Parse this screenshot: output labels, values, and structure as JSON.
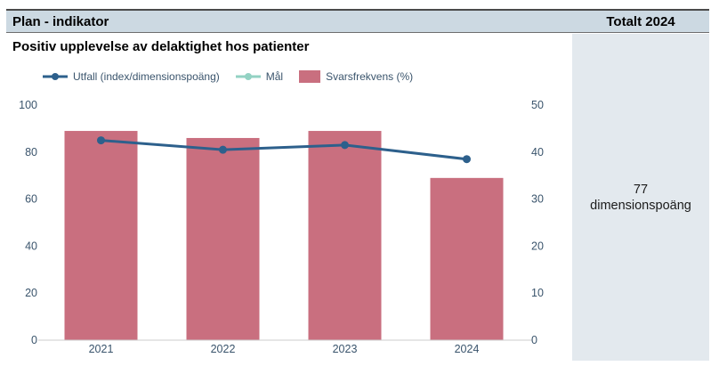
{
  "header": {
    "left_title": "Plan - indikator",
    "right_title": "Totalt 2024"
  },
  "page": {
    "title": "Positiv upplevelse av delaktighet hos patienter"
  },
  "summary_panel": {
    "value": "77",
    "unit": "dimensionspoäng"
  },
  "legend": {
    "items": [
      {
        "label": "Utfall (index/dimensionspoäng)",
        "marker": "line-dot",
        "color": "#2d608c"
      },
      {
        "label": "Mål",
        "marker": "line-dot",
        "color": "#93d2c3"
      },
      {
        "label": "Svarsfrekvens (%)",
        "marker": "box",
        "color": "#c96f7f"
      }
    ]
  },
  "chart_data": {
    "type": "bar",
    "subtype": "bar+line combo",
    "title": "Positiv upplevelse av delaktighet hos patienter",
    "categories": [
      "2021",
      "2022",
      "2023",
      "2024"
    ],
    "series": [
      {
        "name": "Utfall (index/dimensionspoäng)",
        "type": "line",
        "axis": "left",
        "color": "#2d608c",
        "values": [
          85,
          81,
          83,
          77
        ]
      },
      {
        "name": "Mål",
        "type": "line",
        "axis": "left",
        "color": "#93d2c3",
        "values": []
      },
      {
        "name": "Svarsfrekvens (%)",
        "type": "bar",
        "axis": "right",
        "color": "#c96f7f",
        "values": [
          44.5,
          43,
          44.5,
          34.5
        ]
      }
    ],
    "left_axis": {
      "range": [
        0,
        100
      ],
      "ticks": [
        0,
        20,
        40,
        60,
        80,
        100
      ]
    },
    "right_axis": {
      "range": [
        0,
        50
      ],
      "ticks": [
        0,
        10,
        20,
        30,
        40,
        50
      ]
    },
    "grid": false,
    "legend_position": "top-left"
  },
  "colors": {
    "header_bg": "#ccd9e2",
    "panel_bg": "#e3e9ee",
    "bar": "#c96f7f",
    "line": "#2d608c",
    "target": "#93d2c3",
    "axis_text": "#3a546c",
    "axis_line": "#cccccc"
  }
}
